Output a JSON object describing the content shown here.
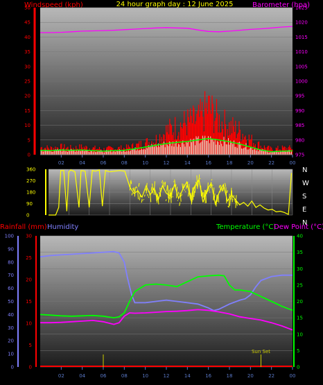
{
  "title": "24 hour graph day : 12 June 2025",
  "colors": {
    "wind": "#ff0000",
    "gust": "#00ff00",
    "baro": "#ff00ff",
    "dir": "#ffff00",
    "rain": "#ff0000",
    "hum": "#8080ff",
    "temp": "#00ff00",
    "dew": "#ff00ff",
    "sunset": "#cccc00",
    "tick": "#5a79c8"
  },
  "chart_data": [
    {
      "type": "area",
      "name": "wind-barometer",
      "left_label": "Windspeed (kph)",
      "right_label": "Barometer (hpa)",
      "x_ticks": [
        "02",
        "04",
        "06",
        "08",
        "10",
        "12",
        "14",
        "16",
        "18",
        "20",
        "22",
        "00"
      ],
      "left_ticks": [
        "0",
        "5",
        "10",
        "15",
        "20",
        "25",
        "30",
        "35",
        "40",
        "45",
        "50"
      ],
      "right_ticks": [
        "975",
        "980",
        "985",
        "990",
        "995",
        "1000",
        "1005",
        "1010",
        "1015",
        "1020",
        "1025"
      ],
      "left_range": [
        0,
        50
      ],
      "right_range": [
        975,
        1025
      ],
      "x_range": [
        0,
        24
      ],
      "series": [
        {
          "name": "Barometer",
          "axis": "right",
          "x": [
            0,
            1,
            2,
            3,
            4,
            5,
            6,
            7,
            8,
            9,
            10,
            11,
            12,
            13,
            14,
            15,
            16,
            17,
            18,
            19,
            20,
            21,
            22,
            23,
            24
          ],
          "y": [
            1016.5,
            1016.5,
            1016.6,
            1016.8,
            1017,
            1017.1,
            1017.2,
            1017.3,
            1017.5,
            1017.7,
            1017.9,
            1018.1,
            1018.2,
            1018.1,
            1018,
            1017.4,
            1016.9,
            1016.8,
            1017,
            1017.3,
            1017.6,
            1017.8,
            1018.1,
            1018.4,
            1018.6
          ]
        },
        {
          "name": "Wind max",
          "axis": "left",
          "x": [
            0,
            1,
            2,
            3,
            4,
            5,
            6,
            7,
            8,
            9,
            10,
            11,
            12,
            13,
            14,
            15,
            16,
            17,
            18,
            19,
            20,
            21,
            22,
            23,
            24
          ],
          "y": [
            3.5,
            3,
            3.5,
            3,
            3.5,
            3,
            2.5,
            3,
            3,
            4,
            5.5,
            7,
            11,
            13,
            15,
            16,
            22,
            16,
            13,
            11,
            7,
            4,
            2.5,
            3,
            3
          ]
        },
        {
          "name": "Wind mean",
          "axis": "left",
          "x": [
            0,
            1,
            2,
            3,
            4,
            5,
            6,
            7,
            8,
            9,
            10,
            11,
            12,
            13,
            14,
            15,
            16,
            17,
            18,
            19,
            20,
            21,
            22,
            23,
            24
          ],
          "y": [
            1.5,
            1.4,
            1.6,
            1.5,
            1.6,
            1.4,
            1.2,
            1.4,
            1.5,
            2,
            2.6,
            3.2,
            3.8,
            4.2,
            4.5,
            5,
            5.5,
            5,
            4.4,
            3.6,
            2.6,
            1.6,
            1,
            1.2,
            1.3
          ]
        }
      ]
    },
    {
      "type": "line",
      "name": "wind-direction",
      "left_ticks": [
        "0",
        "90",
        "180",
        "270",
        "360"
      ],
      "right_labels": [
        "N",
        "W",
        "S",
        "E",
        "N"
      ],
      "left_range": [
        0,
        360
      ],
      "x_range": [
        0,
        24
      ],
      "series": [
        {
          "name": "Direction",
          "x": [
            0,
            0.7,
            1,
            1.2,
            1.5,
            1.8,
            2,
            2.2,
            2.6,
            3,
            3.2,
            3.6,
            4,
            4.3,
            4.6,
            5,
            5.3,
            5.6,
            6,
            6.5,
            7,
            7.5,
            8,
            8.4,
            8.8,
            9.2,
            9.6,
            10,
            10.4,
            10.8,
            11.2,
            11.6,
            12,
            12.4,
            12.8,
            13.2,
            13.6,
            14,
            14.4,
            14.8,
            15.2,
            15.6,
            16,
            16.4,
            16.8,
            17.2,
            17.6,
            18,
            18.4,
            18.8,
            19.2,
            19.6,
            20,
            20.4,
            20.8,
            21.2,
            21.6,
            22,
            22.4,
            22.8,
            23.2,
            23.6,
            23.9
          ],
          "y": [
            0,
            0,
            60,
            350,
            350,
            30,
            340,
            355,
            340,
            60,
            350,
            345,
            60,
            350,
            345,
            355,
            70,
            350,
            340,
            345,
            350,
            345,
            220,
            170,
            190,
            140,
            230,
            160,
            210,
            120,
            230,
            170,
            150,
            240,
            130,
            200,
            260,
            120,
            230,
            280,
            100,
            200,
            250,
            90,
            180,
            240,
            110,
            160,
            120,
            80,
            100,
            70,
            110,
            60,
            80,
            55,
            40,
            45,
            25,
            30,
            20,
            5,
            330
          ]
        }
      ]
    },
    {
      "type": "line",
      "name": "rain-humidity-temperature",
      "left_label": "Rainfall (mm)",
      "hum_label": "Humidity",
      "right_label1": "Temperature (°C)",
      "right_label2": "Dew Point (°C)",
      "hum_ticks": [
        "0",
        "10",
        "20",
        "30",
        "40",
        "50",
        "60",
        "70",
        "80",
        "90",
        "100"
      ],
      "rain_ticks": [
        "0",
        "5",
        "10",
        "15",
        "20",
        "25",
        "30"
      ],
      "temp_ticks": [
        "0",
        "5",
        "10",
        "15",
        "20",
        "25",
        "30",
        "35",
        "40"
      ],
      "x_ticks": [
        "02",
        "04",
        "06",
        "08",
        "10",
        "12",
        "14",
        "16",
        "18",
        "20",
        "22",
        "00"
      ],
      "annotation": "Sun Set",
      "hum_range": [
        0,
        100
      ],
      "temp_range": [
        0,
        40
      ],
      "x_range": [
        0,
        24
      ],
      "series": [
        {
          "name": "Humidity",
          "axis": "hum",
          "x": [
            0,
            1,
            2,
            3,
            4,
            5,
            6,
            7,
            7.5,
            8,
            8.3,
            8.7,
            9,
            10,
            11,
            12,
            13,
            14,
            15,
            16,
            16.5,
            17,
            18,
            19,
            19.5,
            20,
            20.5,
            21,
            22,
            23,
            24
          ],
          "y": [
            84,
            85,
            85.5,
            86,
            86.5,
            87,
            87.5,
            88,
            87,
            80,
            68,
            55,
            49,
            49,
            50,
            51,
            50,
            49,
            48,
            45,
            43,
            44,
            48,
            51,
            52,
            55,
            61,
            66,
            69,
            70,
            70
          ]
        },
        {
          "name": "Temperature",
          "axis": "temp",
          "x": [
            0,
            1,
            2,
            3,
            4,
            5,
            6,
            7,
            7.5,
            8,
            8.5,
            9,
            10,
            11,
            12,
            13,
            14,
            15,
            16,
            17,
            17.5,
            18,
            18.5,
            19,
            20,
            21,
            22,
            23,
            24
          ],
          "y": [
            16,
            15.8,
            15.6,
            15.5,
            15.6,
            15.7,
            15.5,
            15,
            15.3,
            16.5,
            20,
            23,
            25,
            25.3,
            25,
            24.5,
            26,
            27.5,
            27.8,
            28,
            27.8,
            25,
            23.5,
            23.5,
            23,
            21.5,
            20,
            18.5,
            17.3
          ]
        },
        {
          "name": "Dew Point",
          "axis": "temp",
          "x": [
            0,
            1,
            2,
            3,
            4,
            5,
            6,
            7,
            7.5,
            8,
            8.5,
            9,
            10,
            11,
            12,
            13,
            14,
            15,
            16,
            17,
            18,
            19,
            20,
            21,
            22,
            23,
            24
          ],
          "y": [
            13.5,
            13.5,
            13.6,
            13.8,
            14,
            14.2,
            13.8,
            13,
            13.5,
            15.5,
            16.5,
            16.4,
            16.5,
            16.7,
            16.9,
            17,
            17.2,
            17.5,
            17.3,
            16.8,
            16.2,
            15.3,
            14.8,
            14.3,
            13.5,
            12.5,
            11.3
          ]
        }
      ]
    }
  ]
}
